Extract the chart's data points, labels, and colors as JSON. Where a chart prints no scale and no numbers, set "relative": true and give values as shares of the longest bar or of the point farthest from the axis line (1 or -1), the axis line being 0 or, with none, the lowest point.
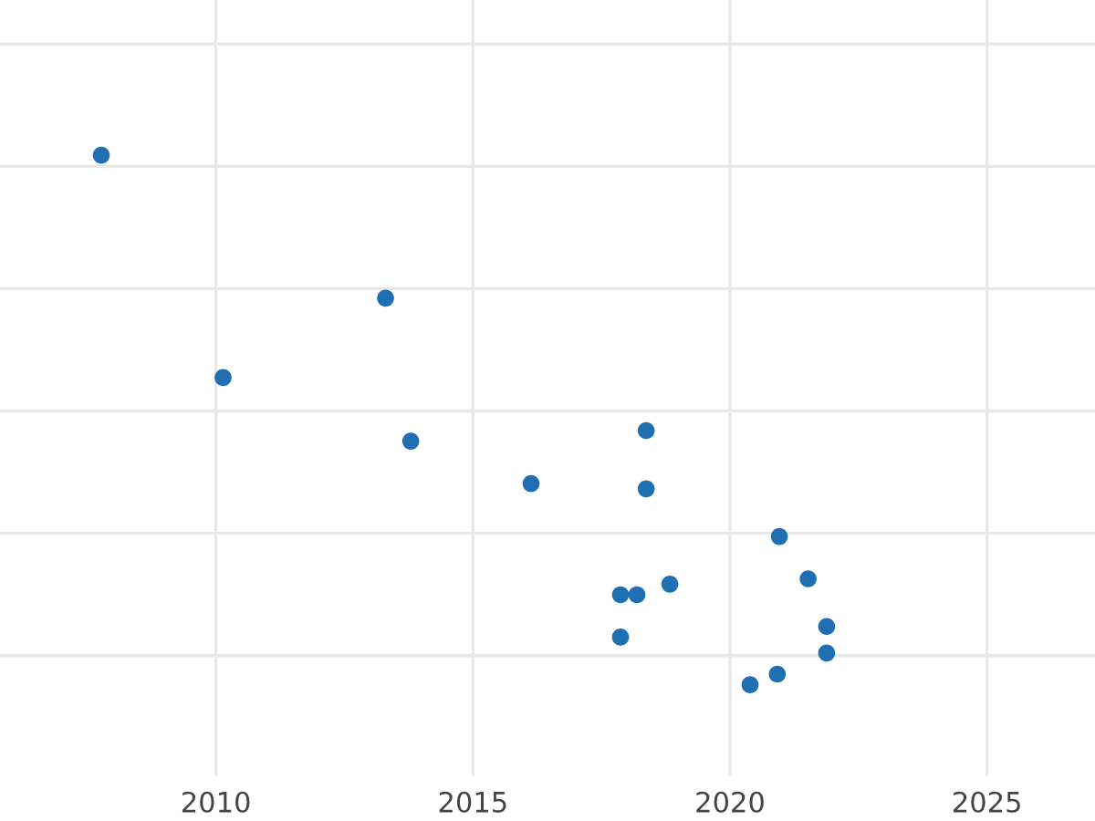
{
  "chart_data": {
    "type": "scatter",
    "relative": true,
    "x": [
      2007.77,
      2013.3,
      2010.14,
      2013.79,
      2018.37,
      2016.13,
      2018.37,
      2020.96,
      2021.52,
      2017.87,
      2018.19,
      2018.83,
      2017.87,
      2021.88,
      2021.88,
      2020.92,
      2020.39
    ],
    "values": [
      1,
      0.73,
      0.58,
      0.46,
      0.48,
      0.38,
      0.37,
      0.28,
      0.2,
      0.17,
      0.17,
      0.19,
      0.09,
      0.11,
      0.06,
      0.02,
      0
    ],
    "color": "#1f6fb2",
    "marker": "circle",
    "xlim": [
      2005.8,
      2027.1
    ],
    "xticks": [
      2010,
      2015,
      2020,
      2025
    ],
    "grid": true,
    "tick_labels": "x"
  }
}
